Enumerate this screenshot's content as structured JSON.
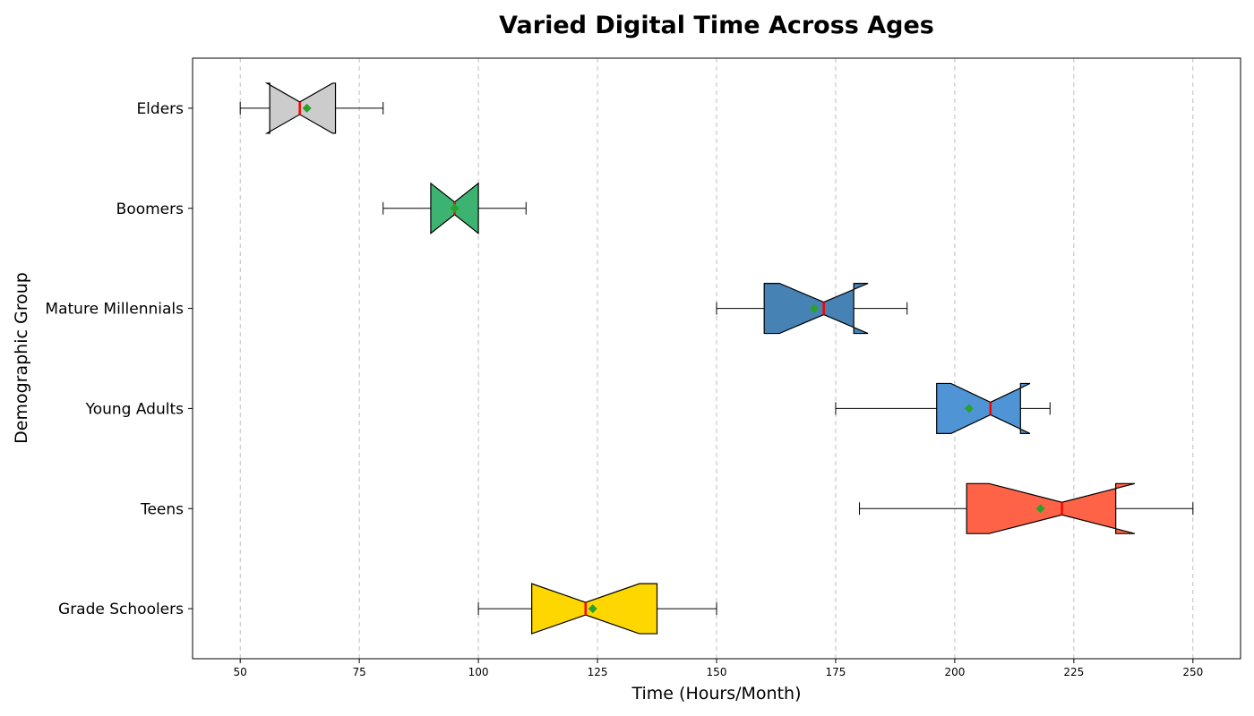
{
  "chart_data": {
    "type": "boxplot",
    "orientation": "horizontal",
    "notched": true,
    "title": "Varied Digital Time Across Ages",
    "xlabel": "Time (Hours/Month)",
    "ylabel": "Demographic Group",
    "xlim": [
      40,
      260
    ],
    "xticks": [
      50,
      75,
      100,
      125,
      150,
      175,
      200,
      225,
      250
    ],
    "grid": "x-dashed",
    "median_color": "#ff0000",
    "mean_color": "#2ca02c",
    "groups": [
      {
        "name": "Grade Schoolers",
        "min": 100,
        "q1": 111.2,
        "median": 122.5,
        "q3": 137.5,
        "max": 150,
        "mean": 124,
        "notch_low": 111.2,
        "notch_high": 133.8,
        "color": "#ffd700"
      },
      {
        "name": "Teens",
        "min": 180,
        "q1": 202.5,
        "median": 222.5,
        "q3": 233.8,
        "max": 250,
        "mean": 218,
        "notch_low": 207.2,
        "notch_high": 237.8,
        "color": "#ff6347"
      },
      {
        "name": "Young Adults",
        "min": 175,
        "q1": 196.2,
        "median": 207.5,
        "q3": 213.8,
        "max": 220,
        "mean": 203,
        "notch_low": 199.2,
        "notch_high": 215.8,
        "color": "#4f94d4"
      },
      {
        "name": "Mature Millennials",
        "min": 150,
        "q1": 160,
        "median": 172.5,
        "q3": 178.8,
        "max": 190,
        "mean": 170.5,
        "notch_low": 163.2,
        "notch_high": 181.8,
        "color": "#4682b4"
      },
      {
        "name": "Boomers",
        "min": 80,
        "q1": 90,
        "median": 95,
        "q3": 100,
        "max": 110,
        "mean": 95,
        "notch_low": 90,
        "notch_high": 100,
        "color": "#3cb371"
      },
      {
        "name": "Elders",
        "min": 50,
        "q1": 56.2,
        "median": 62.5,
        "q3": 70,
        "max": 80,
        "mean": 64,
        "notch_low": 55.6,
        "notch_high": 69.4,
        "color": "#cccccc"
      }
    ]
  }
}
